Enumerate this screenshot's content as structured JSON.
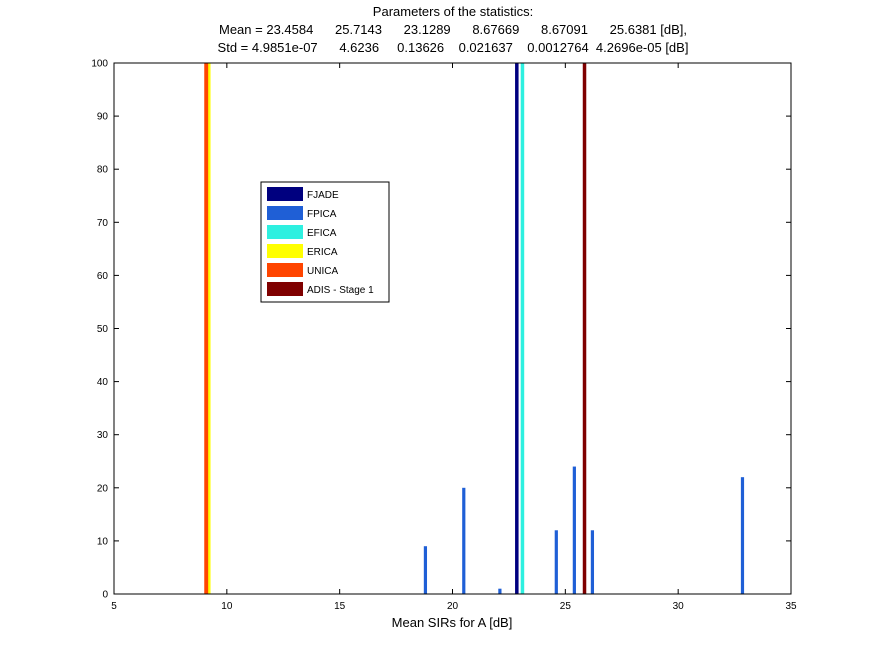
{
  "chart_data": {
    "type": "bar",
    "title": "Parameters of the statistics:",
    "title_lines": [
      "Mean = 23.4584      25.7143      23.1289      8.67669      8.67091      25.6381 [dB],",
      "Std = 4.9851e-07      4.6236     0.13626    0.021637    0.0012764  4.2696e-05 [dB]"
    ],
    "xlabel": "Mean SIRs for A [dB]",
    "ylabel": "",
    "xlim": [
      5,
      35
    ],
    "ylim": [
      0,
      100
    ],
    "xticks": [
      5,
      10,
      15,
      20,
      25,
      30,
      35
    ],
    "yticks": [
      0,
      10,
      20,
      30,
      40,
      50,
      60,
      70,
      80,
      90,
      100
    ],
    "grid": false,
    "legend_position": "upper-left-inside",
    "series": [
      {
        "name": "FJADE",
        "color": "#00007F",
        "x": [
          22.85
        ],
        "values": [
          100
        ]
      },
      {
        "name": "FPICA",
        "color": "#1F5FD6",
        "x": [
          18.8,
          20.5,
          22.1,
          24.6,
          25.4,
          26.2,
          32.85
        ],
        "values": [
          9,
          20,
          1,
          12,
          24,
          12,
          22
        ]
      },
      {
        "name": "EFICA",
        "color": "#2EF0E0",
        "x": [
          23.1
        ],
        "values": [
          100
        ]
      },
      {
        "name": "ERICA",
        "color": "#FFFF00",
        "x": [
          9.2
        ],
        "values": [
          100
        ]
      },
      {
        "name": "UNICA",
        "color": "#FF4500",
        "x": [
          9.15
        ],
        "values": [
          100
        ]
      },
      {
        "name": "ADIS - Stage 1",
        "color": "#7F0000",
        "x": [
          25.85
        ],
        "values": [
          100
        ]
      }
    ]
  }
}
